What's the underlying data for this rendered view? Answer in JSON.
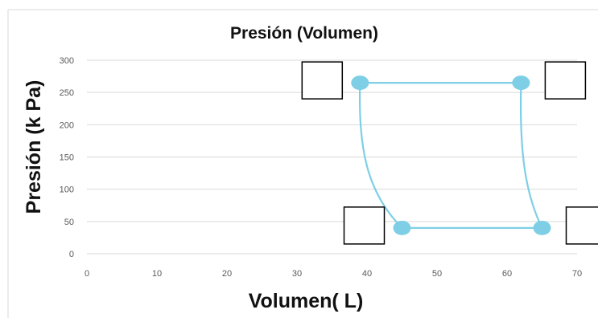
{
  "chart_data": {
    "type": "line",
    "title": "Presión (Volumen)",
    "xlabel": "Volumen( L)",
    "ylabel": "Presión (k Pa)",
    "xlim": [
      0,
      70
    ],
    "ylim": [
      0,
      300
    ],
    "x_ticks": [
      "0",
      "10",
      "20",
      "30",
      "40",
      "50",
      "60",
      "70"
    ],
    "y_ticks": [
      "0",
      "50",
      "100",
      "150",
      "200",
      "250",
      "300"
    ],
    "grid": "horizontal",
    "legend": "none",
    "series_color": "#7ecfe6",
    "points": [
      {
        "x": 39,
        "y": 265
      },
      {
        "x": 62,
        "y": 265
      },
      {
        "x": 65,
        "y": 40
      },
      {
        "x": 45,
        "y": 40
      }
    ],
    "segments": [
      {
        "from": 0,
        "to": 1,
        "shape": "straight"
      },
      {
        "from": 1,
        "to": 2,
        "shape": "curve"
      },
      {
        "from": 2,
        "to": 3,
        "shape": "straight"
      },
      {
        "from": 3,
        "to": 0,
        "shape": "curve"
      }
    ],
    "label_boxes": [
      {
        "point": 0,
        "side": "left",
        "text": ""
      },
      {
        "point": 1,
        "side": "right",
        "text": ""
      },
      {
        "point": 2,
        "side": "right",
        "text": ""
      },
      {
        "point": 3,
        "side": "left",
        "text": ""
      }
    ]
  }
}
